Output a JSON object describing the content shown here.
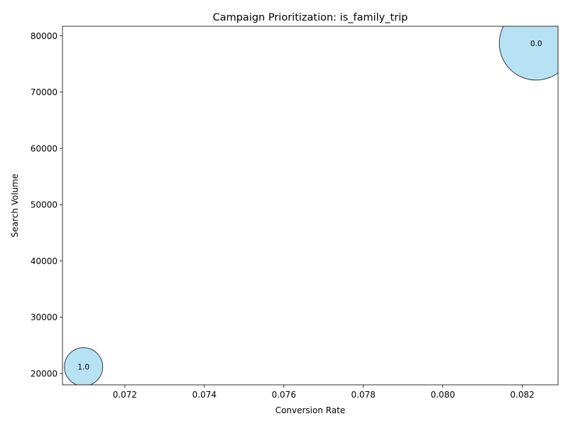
{
  "chart_data": {
    "type": "scatter",
    "title": "Campaign Prioritization: is_family_trip",
    "xlabel": "Conversion Rate",
    "ylabel": "Search Volume",
    "xlim": [
      0.07043,
      0.0829
    ],
    "ylim": [
      18000,
      81700
    ],
    "xticks": [
      0.072,
      0.074,
      0.076,
      0.078,
      0.08,
      0.082
    ],
    "xtick_labels": [
      "0.072",
      "0.074",
      "0.076",
      "0.078",
      "0.080",
      "0.082"
    ],
    "yticks": [
      20000,
      30000,
      40000,
      50000,
      60000,
      70000,
      80000
    ],
    "ytick_labels": [
      "20000",
      "30000",
      "40000",
      "50000",
      "60000",
      "70000",
      "80000"
    ],
    "grid": false,
    "bubble_color": "#87CEEB",
    "bubble_edge_color": "#2f3a40",
    "points": [
      {
        "label": "1.0",
        "x": 0.07096,
        "y": 21200,
        "size": 21200
      },
      {
        "label": "0.0",
        "x": 0.08235,
        "y": 78700,
        "size": 78700
      }
    ]
  }
}
